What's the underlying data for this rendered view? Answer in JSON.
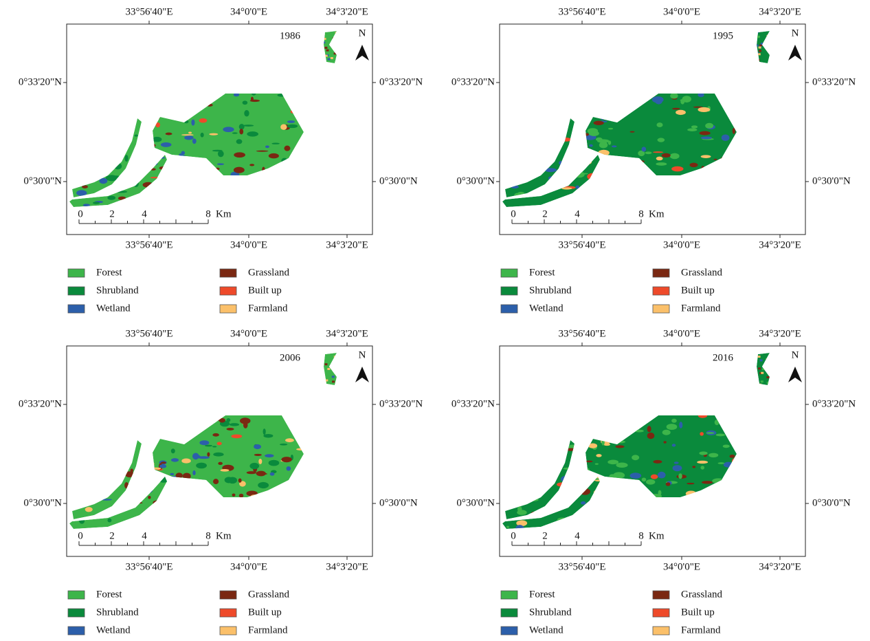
{
  "panels": [
    {
      "year": "1986",
      "top_labels": [
        "33°56'40\"E",
        "34°0'0\"E",
        "34°3'20\"E"
      ],
      "bottom_labels": [
        "33°56'40\"E",
        "34°0'0\"E",
        "34°3'20\"E"
      ],
      "left_labels": [
        "0°33'20\"N",
        "0°30'0\"N"
      ],
      "right_labels": [
        "0°33'20\"N",
        "0°30'0\"N"
      ],
      "scale_labels": [
        "0",
        "2",
        "4",
        "8"
      ],
      "scale_unit": "Km",
      "north": "N",
      "legend": [
        {
          "label": "Forest",
          "color": "#3db54a"
        },
        {
          "label": "Shrubland",
          "color": "#0a8a3c"
        },
        {
          "label": "Wetland",
          "color": "#2c5faa"
        },
        {
          "label": "Grassland",
          "color": "#7a2812"
        },
        {
          "label": "Built up",
          "color": "#ee4a2a"
        },
        {
          "label": "Farmland",
          "color": "#fbc06a"
        }
      ]
    },
    {
      "year": "1995",
      "top_labels": [
        "33°56'40\"E",
        "34°0'0\"E",
        "34°3'20\"E"
      ],
      "bottom_labels": [
        "33°56'40\"E",
        "34°0'0\"E",
        "34°3'20\"E"
      ],
      "left_labels": [
        "0°33'20\"N",
        "0°30'0\"N"
      ],
      "right_labels": [
        "0°33'20\"N",
        "0°30'0\"N"
      ],
      "scale_labels": [
        "0",
        "2",
        "4",
        "8"
      ],
      "scale_unit": "Km",
      "north": "N",
      "legend": [
        {
          "label": "Forest",
          "color": "#3db54a"
        },
        {
          "label": "Shrubland",
          "color": "#0a8a3c"
        },
        {
          "label": "Wetland",
          "color": "#2c5faa"
        },
        {
          "label": "Grassland",
          "color": "#7a2812"
        },
        {
          "label": "Built up",
          "color": "#ee4a2a"
        },
        {
          "label": "Farmland",
          "color": "#fbc06a"
        }
      ]
    },
    {
      "year": "2006",
      "top_labels": [
        "33°56'40\"E",
        "34°0'0\"E",
        "34°3'20\"E"
      ],
      "bottom_labels": [
        "33°56'40\"E",
        "34°0'0\"E",
        "34°3'20\"E"
      ],
      "left_labels": [
        "0°33'20\"N",
        "0°30'0\"N"
      ],
      "right_labels": [
        "0°33'20\"N",
        "0°30'0\"N"
      ],
      "scale_labels": [
        "0",
        "2",
        "4",
        "8"
      ],
      "scale_unit": "Km",
      "north": "N",
      "legend": [
        {
          "label": "Forest",
          "color": "#3db54a"
        },
        {
          "label": "Shrubland",
          "color": "#0a8a3c"
        },
        {
          "label": "Wetland",
          "color": "#2c5faa"
        },
        {
          "label": "Grassland",
          "color": "#7a2812"
        },
        {
          "label": "Built up",
          "color": "#ee4a2a"
        },
        {
          "label": "Farmland",
          "color": "#fbc06a"
        }
      ]
    },
    {
      "year": "2016",
      "top_labels": [
        "33°56'40\"E",
        "34°0'0\"E",
        "34°3'20\"E"
      ],
      "bottom_labels": [
        "33°56'40\"E",
        "34°0'0\"E",
        "34°3'20\"E"
      ],
      "left_labels": [
        "0°33'20\"N",
        "0°30'0\"N"
      ],
      "right_labels": [
        "0°33'20\"N",
        "0°30'0\"N"
      ],
      "scale_labels": [
        "0",
        "2",
        "4",
        "8"
      ],
      "scale_unit": "Km",
      "north": "N",
      "legend": [
        {
          "label": "Forest",
          "color": "#3db54a"
        },
        {
          "label": "Shrubland",
          "color": "#0a8a3c"
        },
        {
          "label": "Wetland",
          "color": "#2c5faa"
        },
        {
          "label": "Grassland",
          "color": "#7a2812"
        },
        {
          "label": "Built up",
          "color": "#ee4a2a"
        },
        {
          "label": "Farmland",
          "color": "#fbc06a"
        }
      ]
    }
  ]
}
